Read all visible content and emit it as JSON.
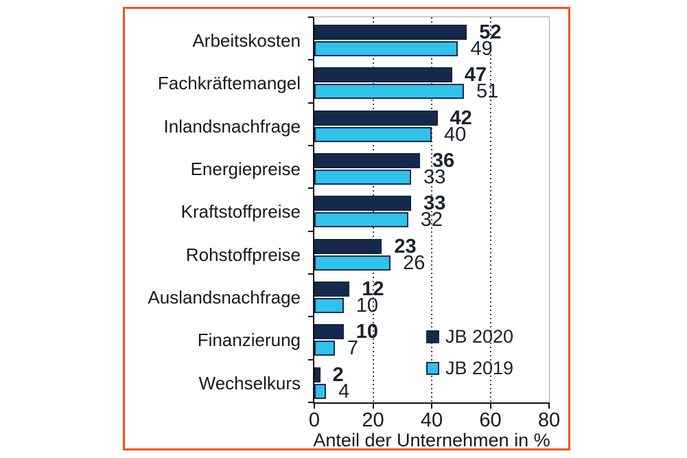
{
  "frame": {
    "border_color": "#F4501E"
  },
  "colors": {
    "series_2020": "#15294E",
    "series_2019": "#2FC2EA",
    "bar_border": "#1b2b4e",
    "axis": "#111111",
    "plot_border_gray": "#a8a8a8",
    "text": "#191919"
  },
  "chart_data": {
    "type": "bar",
    "orientation": "horizontal",
    "title": "",
    "xlabel": "Anteil der Unternehmen in %",
    "ylabel": "",
    "xlim": [
      0,
      80
    ],
    "xticks": [
      "0",
      "20",
      "40",
      "60",
      "80"
    ],
    "xtick_values": [
      0,
      20,
      40,
      60,
      80
    ],
    "gridline_values": [
      20,
      40,
      60
    ],
    "grid": "dotted-vertical",
    "legend_position": "inside-bottom-right",
    "categories": [
      "Arbeitskosten",
      "Fachkräftemangel",
      "Inlandsnachfrage",
      "Energiepreise",
      "Kraftstoffpreise",
      "Rohstoffpreise",
      "Auslandsnachfrage",
      "Finanzierung",
      "Wechselkurs"
    ],
    "series": [
      {
        "name": "JB 2020",
        "color": "#15294E",
        "values": [
          52,
          47,
          42,
          36,
          33,
          23,
          12,
          10,
          2
        ]
      },
      {
        "name": "JB 2019",
        "color": "#2FC2EA",
        "values": [
          49,
          51,
          40,
          33,
          32,
          26,
          10,
          7,
          4
        ]
      }
    ]
  }
}
